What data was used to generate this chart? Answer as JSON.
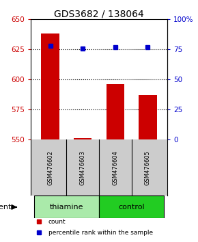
{
  "title": "GDS3682 / 138064",
  "samples": [
    "GSM476602",
    "GSM476603",
    "GSM476604",
    "GSM476605"
  ],
  "counts": [
    638,
    551,
    596,
    587
  ],
  "percentiles": [
    78,
    76,
    77,
    77
  ],
  "ylim_left": [
    550,
    650
  ],
  "ylim_right": [
    0,
    100
  ],
  "yticks_left": [
    550,
    575,
    600,
    625,
    650
  ],
  "yticks_right": [
    0,
    25,
    50,
    75,
    100
  ],
  "ytick_labels_right": [
    "0",
    "25",
    "50",
    "75",
    "100%"
  ],
  "bar_color": "#cc0000",
  "dot_color": "#0000cc",
  "grid_color": "#000000",
  "agent_groups": [
    {
      "label": "thiamine",
      "samples": [
        0,
        1
      ],
      "color": "#aaeaaa"
    },
    {
      "label": "control",
      "samples": [
        2,
        3
      ],
      "color": "#22cc22"
    }
  ],
  "sample_box_color": "#cccccc",
  "legend_items": [
    {
      "label": "count",
      "color": "#cc0000"
    },
    {
      "label": "percentile rank within the sample",
      "color": "#0000cc"
    }
  ],
  "bar_width": 0.55,
  "title_fontsize": 10,
  "tick_fontsize": 7.5,
  "label_fontsize": 7.5
}
